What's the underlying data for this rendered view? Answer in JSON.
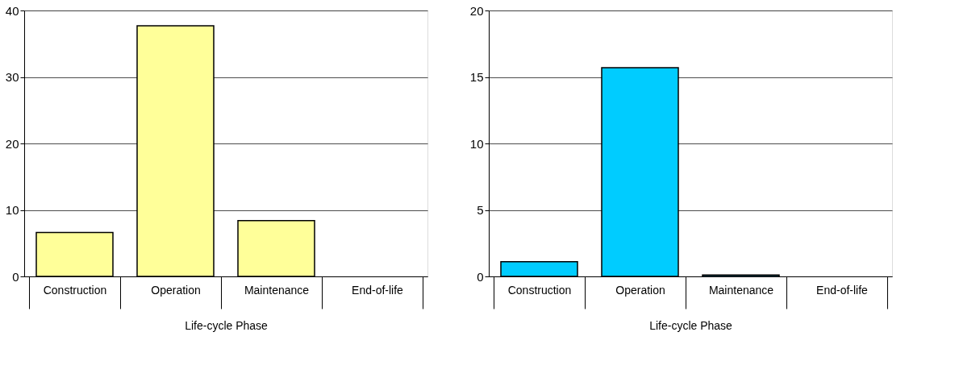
{
  "chart_data": [
    {
      "type": "bar",
      "xlabel": "Life-cycle Phase",
      "categories": [
        "Construction",
        "Operation",
        "Maintenance",
        "End-of-life"
      ],
      "values": [
        6.6,
        37.7,
        8.4,
        0
      ],
      "color": "#ffff99",
      "ylim": [
        0,
        40
      ],
      "yticks": [
        0,
        10,
        20,
        30,
        40
      ],
      "grid": "y"
    },
    {
      "type": "bar",
      "xlabel": "Life-cycle Phase",
      "categories": [
        "Construction",
        "Operation",
        "Maintenance",
        "End-of-life"
      ],
      "values": [
        1.1,
        15.7,
        0.1,
        0
      ],
      "color": "#00ccff",
      "ylim": [
        0,
        20
      ],
      "yticks": [
        0,
        5,
        10,
        15,
        20
      ],
      "grid": "y"
    }
  ]
}
